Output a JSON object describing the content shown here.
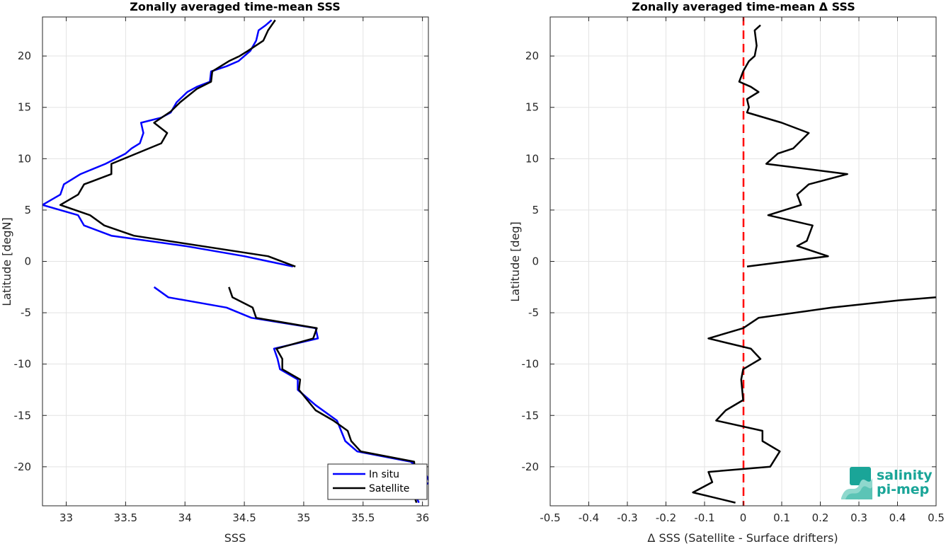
{
  "chart_data": [
    {
      "type": "line",
      "title": "Zonally averaged time-mean SSS",
      "xlabel": "SSS",
      "ylabel": "Latitude [degN]",
      "xlim": [
        32.8,
        36.05
      ],
      "ylim": [
        -23.8,
        23.8
      ],
      "xticks": [
        33,
        33.5,
        34,
        34.5,
        35,
        35.5,
        36
      ],
      "yticks": [
        -20,
        -15,
        -10,
        -5,
        0,
        5,
        10,
        15,
        20
      ],
      "grid": true,
      "legend": "bottom-right",
      "series": [
        {
          "name": "In situ",
          "color": "#0000ff",
          "segments": [
            [
              [
                34.73,
                23.5
              ],
              [
                34.68,
                23
              ],
              [
                34.62,
                22.5
              ],
              [
                34.6,
                21.5
              ],
              [
                34.55,
                20.5
              ],
              [
                34.45,
                19.5
              ],
              [
                34.35,
                19
              ],
              [
                34.22,
                18.5
              ],
              [
                34.21,
                17.5
              ],
              [
                34.1,
                17
              ],
              [
                34.02,
                16.5
              ],
              [
                33.93,
                15.5
              ],
              [
                33.88,
                14.5
              ],
              [
                33.8,
                14
              ],
              [
                33.63,
                13.5
              ],
              [
                33.65,
                12.5
              ],
              [
                33.62,
                11.5
              ],
              [
                33.55,
                11
              ],
              [
                33.5,
                10.5
              ],
              [
                33.33,
                9.5
              ],
              [
                33.12,
                8.5
              ],
              [
                32.98,
                7.5
              ],
              [
                32.95,
                6.5
              ],
              [
                32.8,
                5.5
              ],
              [
                33.1,
                4.5
              ],
              [
                33.15,
                3.5
              ],
              [
                33.38,
                2.5
              ],
              [
                34.0,
                1.5
              ],
              [
                34.5,
                0.5
              ],
              [
                34.91,
                -0.5
              ]
            ],
            [
              [
                33.74,
                -2.5
              ],
              [
                33.86,
                -3.5
              ],
              [
                34.35,
                -4.5
              ],
              [
                34.56,
                -5.5
              ],
              [
                35.1,
                -6.5
              ],
              [
                35.12,
                -7.5
              ],
              [
                34.75,
                -8.5
              ],
              [
                34.78,
                -9.5
              ],
              [
                34.8,
                -10.5
              ],
              [
                34.95,
                -11.5
              ],
              [
                34.95,
                -12.5
              ],
              [
                35.1,
                -14.0
              ],
              [
                35.28,
                -15.5
              ],
              [
                35.35,
                -17.5
              ],
              [
                35.45,
                -18.5
              ],
              [
                35.9,
                -19.5
              ],
              [
                36.02,
                -20.5
              ],
              [
                36.06,
                -21.5
              ],
              [
                35.93,
                -22.5
              ],
              [
                35.97,
                -23.5
              ]
            ]
          ]
        },
        {
          "name": "Satellite",
          "color": "#000000",
          "segments": [
            [
              [
                34.76,
                23.5
              ],
              [
                34.7,
                22.5
              ],
              [
                34.66,
                21.5
              ],
              [
                34.53,
                20.5
              ],
              [
                34.46,
                20
              ],
              [
                34.37,
                19.5
              ],
              [
                34.23,
                18.5
              ],
              [
                34.22,
                17.5
              ],
              [
                34.1,
                16.8
              ],
              [
                33.96,
                15.5
              ],
              [
                33.88,
                14.6
              ],
              [
                33.74,
                13.5
              ],
              [
                33.85,
                12.5
              ],
              [
                33.8,
                11.5
              ],
              [
                33.38,
                9.5
              ],
              [
                33.38,
                8.5
              ],
              [
                33.15,
                7.5
              ],
              [
                33.1,
                6.5
              ],
              [
                32.95,
                5.5
              ],
              [
                33.2,
                4.5
              ],
              [
                33.32,
                3.5
              ],
              [
                33.57,
                2.5
              ],
              [
                34.7,
                0.5
              ],
              [
                34.93,
                -0.5
              ]
            ],
            [
              [
                34.37,
                -2.5
              ],
              [
                34.4,
                -3.5
              ],
              [
                34.57,
                -4.5
              ],
              [
                34.6,
                -5.5
              ],
              [
                35.11,
                -6.5
              ],
              [
                35.08,
                -7.5
              ],
              [
                34.77,
                -8.5
              ],
              [
                34.82,
                -9.5
              ],
              [
                34.82,
                -10.5
              ],
              [
                34.97,
                -11.5
              ],
              [
                34.96,
                -12.5
              ],
              [
                35.1,
                -14.5
              ],
              [
                35.25,
                -15.5
              ],
              [
                35.37,
                -16.5
              ],
              [
                35.4,
                -17.5
              ],
              [
                35.48,
                -18.5
              ],
              [
                35.93,
                -19.5
              ],
              [
                35.94,
                -21
              ],
              [
                35.92,
                -22.5
              ],
              [
                35.95,
                -23.5
              ]
            ]
          ]
        }
      ]
    },
    {
      "type": "line",
      "title": "Zonally averaged time-mean Δ SSS",
      "xlabel": "Δ SSS (Satellite - Surface drifters)",
      "ylabel": "Latitude [deg]",
      "xlim": [
        -0.5,
        0.5
      ],
      "ylim": [
        -23.8,
        23.8
      ],
      "xticks": [
        -0.5,
        -0.4,
        -0.3,
        -0.2,
        -0.1,
        0,
        0.1,
        0.2,
        0.3,
        0.4,
        0.5
      ],
      "xtick_labels": [
        "-0.5",
        "-0.4",
        "-0.3",
        "-0.2",
        "-0.1",
        "0",
        "0.1",
        "0.2",
        "0.3",
        "0.4",
        "0.5"
      ],
      "yticks": [
        -20,
        -15,
        -10,
        -5,
        0,
        5,
        10,
        15,
        20
      ],
      "grid": true,
      "zero_line": {
        "x": 0,
        "color": "#ff0000",
        "style": "dashed"
      },
      "series": [
        {
          "name": "",
          "color": "#000000",
          "segments": [
            [
              [
                0.045,
                23
              ],
              [
                0.03,
                22.5
              ],
              [
                0.035,
                21
              ],
              [
                0.03,
                20
              ],
              [
                0.015,
                19.5
              ],
              [
                0.0,
                18.5
              ],
              [
                -0.01,
                17.5
              ],
              [
                0.02,
                17
              ],
              [
                0.04,
                16.5
              ],
              [
                0.01,
                15.8
              ],
              [
                0.015,
                15
              ],
              [
                0.01,
                14.5
              ],
              [
                0.1,
                13.5
              ],
              [
                0.17,
                12.5
              ],
              [
                0.13,
                11
              ],
              [
                0.09,
                10.5
              ],
              [
                0.06,
                9.5
              ],
              [
                0.27,
                8.5
              ],
              [
                0.17,
                7.5
              ],
              [
                0.14,
                6.5
              ],
              [
                0.15,
                5.5
              ],
              [
                0.065,
                4.5
              ],
              [
                0.18,
                3.5
              ],
              [
                0.17,
                2.5
              ],
              [
                0.165,
                2
              ],
              [
                0.14,
                1.5
              ],
              [
                0.22,
                0.5
              ],
              [
                0.01,
                -0.5
              ]
            ],
            [
              [
                0.5,
                -3.5
              ],
              [
                0.4,
                -3.8
              ],
              [
                0.23,
                -4.5
              ],
              [
                0.04,
                -5.5
              ],
              [
                0.0,
                -6.5
              ],
              [
                -0.09,
                -7.5
              ],
              [
                0.02,
                -8.5
              ],
              [
                0.045,
                -9.5
              ],
              [
                0.0,
                -10.5
              ],
              [
                -0.005,
                -11.5
              ],
              [
                0.0,
                -13.5
              ],
              [
                -0.045,
                -14.5
              ],
              [
                -0.07,
                -15.5
              ],
              [
                0.05,
                -16.5
              ],
              [
                0.05,
                -17.5
              ],
              [
                0.095,
                -18.5
              ],
              [
                0.07,
                -20
              ],
              [
                -0.09,
                -20.5
              ],
              [
                -0.08,
                -21.5
              ],
              [
                -0.13,
                -22.5
              ],
              [
                -0.02,
                -23.5
              ]
            ]
          ]
        }
      ]
    }
  ],
  "legend": {
    "entries": [
      "In situ",
      "Satellite"
    ]
  },
  "logo": {
    "line1": "salinity",
    "line2": "pi-mep"
  }
}
